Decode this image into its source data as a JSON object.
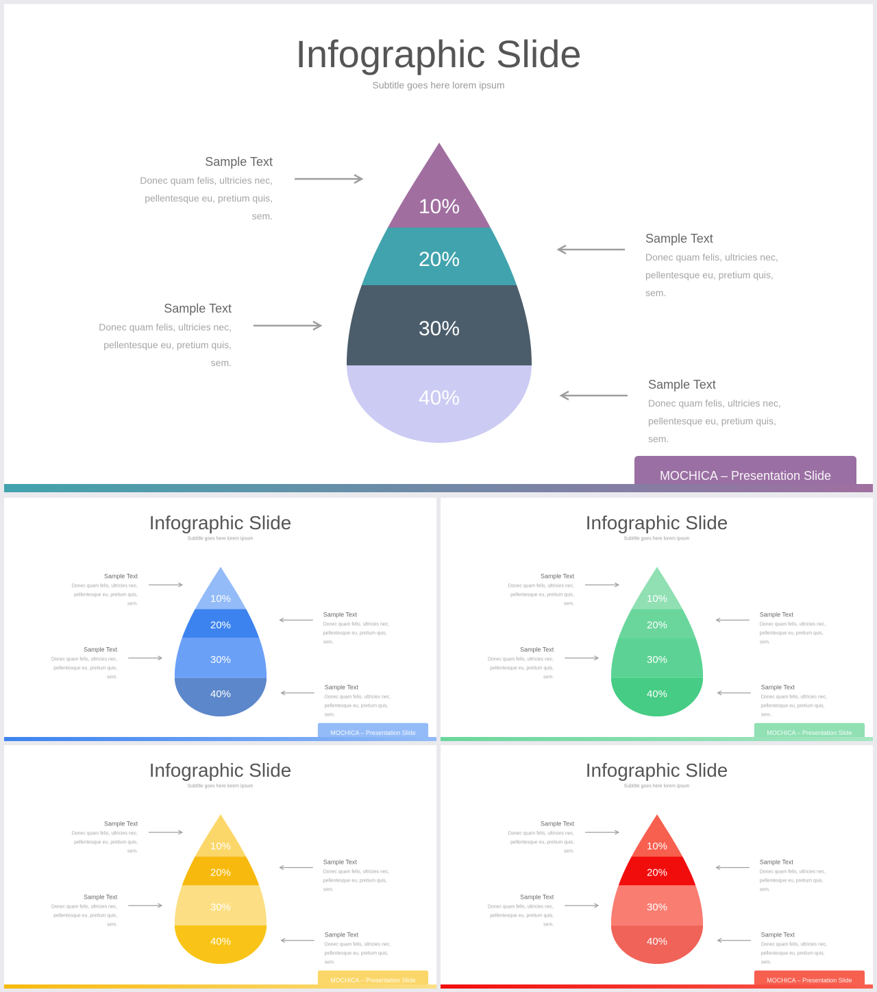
{
  "main_slide": {
    "title": "Infographic Slide",
    "subtitle": "Subtitle  goes here lorem  ipsum",
    "footer_tag": "MOCHICA  – Presentation  Slide",
    "segments": [
      {
        "label": "10%",
        "color": "#a06fa0"
      },
      {
        "label": "20%",
        "color": "#41a3ad"
      },
      {
        "label": "30%",
        "color": "#4b5d6b"
      },
      {
        "label": "40%",
        "color": "#cccbf3"
      }
    ],
    "label_color": "#ffffff",
    "bottom_bar_gradient": [
      "#41a3ad",
      "#a06fa0"
    ],
    "tag_color": "#9a6fa3",
    "callouts": [
      {
        "heading": "Sample  Text",
        "body": [
          "Donec quam felis, ultricies nec,",
          "pellentesque  eu, pretium  quis,",
          "sem."
        ]
      },
      {
        "heading": "Sample  Text",
        "body": [
          "Donec quam felis, ultricies nec,",
          "pellentesque  eu, pretium  quis,",
          "sem."
        ]
      },
      {
        "heading": "Sample  Text",
        "body": [
          "Donec quam felis, ultricies nec,",
          "pellentesque  eu, pretium  quis,",
          "sem."
        ]
      },
      {
        "heading": "Sample  Text",
        "body": [
          "Donec quam felis, ultricies nec,",
          "pellentesque  eu, pretium  quis,",
          "sem."
        ]
      }
    ]
  },
  "thumbnails": [
    {
      "title": "Infographic Slide",
      "subtitle": "Subtitle goes here lorem ipsum",
      "footer_tag": "MOCHICA  – Presentation  Slide",
      "segments": [
        {
          "label": "10%",
          "color": "#93bbf8"
        },
        {
          "label": "20%",
          "color": "#3c83ef"
        },
        {
          "label": "30%",
          "color": "#6ba0f7"
        },
        {
          "label": "40%",
          "color": "#5c87cb"
        }
      ],
      "bottom_bar_gradient": [
        "#3c83ef",
        "#93bbf8"
      ],
      "tag_color": "#93bbf8",
      "callouts": [
        {
          "heading": "Sample  Text",
          "body": [
            "Donec quam felis, ultricies nec,",
            "pellentesque  eu, pretium  quis,",
            "sem."
          ]
        },
        {
          "heading": "Sample  Text",
          "body": [
            "Donec quam felis, ultricies nec,",
            "pellentesque  eu, pretium  quis,",
            "sem."
          ]
        },
        {
          "heading": "Sample  Text",
          "body": [
            "Donec quam felis, ultricies nec,",
            "pellentesque  eu, pretium  quis,",
            "sem."
          ]
        },
        {
          "heading": "Sample  Text",
          "body": [
            "Donec quam felis, ultricies nec,",
            "pellentesque  eu, pretium  quis,",
            "sem."
          ]
        }
      ]
    },
    {
      "title": "Infographic Slide",
      "subtitle": "Subtitle goes here lorem ipsum",
      "footer_tag": "MOCHICA  – Presentation  Slide",
      "segments": [
        {
          "label": "10%",
          "color": "#90e0b3"
        },
        {
          "label": "20%",
          "color": "#6ad69c"
        },
        {
          "label": "30%",
          "color": "#5cd394"
        },
        {
          "label": "40%",
          "color": "#46cc84"
        }
      ],
      "bottom_bar_gradient": [
        "#6ad69c",
        "#a6e6c2"
      ],
      "tag_color": "#90e0b3",
      "callouts": [
        {
          "heading": "Sample  Text",
          "body": [
            "Donec quam felis, ultricies nec,",
            "pellentesque  eu, pretium  quis,",
            "sem."
          ]
        },
        {
          "heading": "Sample  Text",
          "body": [
            "Donec quam felis, ultricies nec,",
            "pellentesque  eu, pretium  quis,",
            "sem."
          ]
        },
        {
          "heading": "Sample  Text",
          "body": [
            "Donec quam felis, ultricies nec,",
            "pellentesque  eu, pretium  quis,",
            "sem."
          ]
        },
        {
          "heading": "Sample  Text",
          "body": [
            "Donec quam felis, ultricies nec,",
            "pellentesque  eu, pretium  quis,",
            "sem."
          ]
        }
      ]
    },
    {
      "title": "Infographic Slide",
      "subtitle": "Subtitle goes here lorem ipsum",
      "footer_tag": "MOCHICA  – Presentation  Slide",
      "segments": [
        {
          "label": "10%",
          "color": "#fbd76a"
        },
        {
          "label": "20%",
          "color": "#f7b90d"
        },
        {
          "label": "30%",
          "color": "#fcdf84"
        },
        {
          "label": "40%",
          "color": "#f9c417"
        }
      ],
      "bottom_bar_gradient": [
        "#f7b90d",
        "#fcdf84"
      ],
      "tag_color": "#fbd76a",
      "callouts": [
        {
          "heading": "Sample  Text",
          "body": [
            "Donec quam felis, ultricies nec,",
            "pellentesque  eu, pretium  quis,",
            "sem."
          ]
        },
        {
          "heading": "Sample  Text",
          "body": [
            "Donec quam felis, ultricies nec,",
            "pellentesque  eu, pretium  quis,",
            "sem."
          ]
        },
        {
          "heading": "Sample  Text",
          "body": [
            "Donec quam felis, ultricies nec,",
            "pellentesque  eu, pretium  quis,",
            "sem."
          ]
        },
        {
          "heading": "Sample  Text",
          "body": [
            "Donec quam felis, ultricies nec,",
            "pellentesque  eu, pretium  quis,",
            "sem."
          ]
        }
      ]
    },
    {
      "title": "Infographic Slide",
      "subtitle": "Subtitle goes here lorem ipsum",
      "footer_tag": "MOCHICA  – Presentation  Slide",
      "segments": [
        {
          "label": "10%",
          "color": "#f75f4f"
        },
        {
          "label": "20%",
          "color": "#f20d0d"
        },
        {
          "label": "30%",
          "color": "#fa7d72"
        },
        {
          "label": "40%",
          "color": "#f06358"
        }
      ],
      "bottom_bar_gradient": [
        "#f20d0d",
        "#f75f4f"
      ],
      "tag_color": "#f75f4f",
      "callouts": [
        {
          "heading": "Sample  Text",
          "body": [
            "Donec quam felis, ultricies nec,",
            "pellentesque  eu, pretium  quis,",
            "sem."
          ]
        },
        {
          "heading": "Sample  Text",
          "body": [
            "Donec quam felis, ultricies nec,",
            "pellentesque  eu, pretium  quis,",
            "sem."
          ]
        },
        {
          "heading": "Sample  Text",
          "body": [
            "Donec quam felis, ultricies nec,",
            "pellentesque  eu, pretium  quis,",
            "sem."
          ]
        },
        {
          "heading": "Sample  Text",
          "body": [
            "Donec quam felis, ultricies nec,",
            "pellentesque  eu, pretium  quis,",
            "sem."
          ]
        }
      ]
    }
  ]
}
